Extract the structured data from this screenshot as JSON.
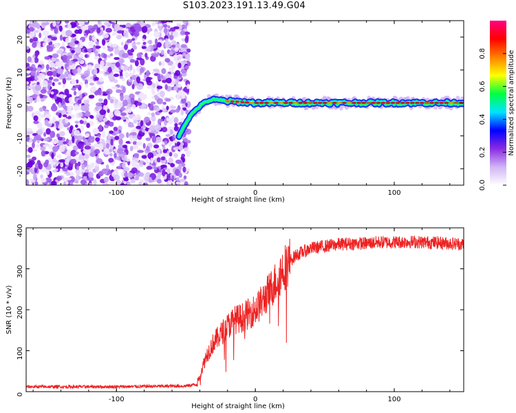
{
  "title": "S103.2023.191.13.49.G04",
  "chart_data": [
    {
      "type": "heatmap",
      "xlabel": "Height of straight line (km)",
      "ylabel": "Frequency (Hz)",
      "xlim": [
        -165,
        150
      ],
      "ylim": [
        -25,
        25
      ],
      "xticks": [
        -100,
        0,
        100
      ],
      "yticks": [
        -20,
        -10,
        0,
        10,
        20
      ],
      "colorbar": {
        "label": "Normalized spectral amplitude",
        "range": [
          0,
          1
        ],
        "ticks": [
          "0.0",
          "0.2",
          "0.4",
          "0.6",
          "0.8"
        ],
        "colormap": [
          "#ffffff",
          "#d0b4f5",
          "#8a2be2",
          "#0000ff",
          "#00e5ff",
          "#00ff40",
          "#ffff00",
          "#ff8000",
          "#ff0000",
          "#ff0080"
        ]
      },
      "signal_track": [
        {
          "x": -55,
          "y": -10
        },
        {
          "x": -50,
          "y": -6
        },
        {
          "x": -45,
          "y": -3
        },
        {
          "x": -40,
          "y": -1
        },
        {
          "x": -35,
          "y": 0.5
        },
        {
          "x": -30,
          "y": 1
        },
        {
          "x": -20,
          "y": 0.5
        },
        {
          "x": -10,
          "y": 0.3
        },
        {
          "x": 0,
          "y": 0
        },
        {
          "x": 50,
          "y": 0
        },
        {
          "x": 100,
          "y": 0
        },
        {
          "x": 150,
          "y": 0
        }
      ],
      "noise_region_xmax": -48,
      "grid": false
    },
    {
      "type": "line",
      "xlabel": "Height of straight line (km)",
      "ylabel": "SNR (10 * v/v)",
      "xlim": [
        -165,
        150
      ],
      "ylim": [
        0,
        400
      ],
      "xticks": [
        -100,
        0,
        100
      ],
      "yticks": [
        0,
        100,
        200,
        300,
        400
      ],
      "color": "#ee2222",
      "series": [
        {
          "x": [
            -165,
            -100,
            -50,
            -42,
            -40,
            -35,
            -30,
            -25,
            -20,
            -15,
            -10,
            -5,
            0,
            5,
            10,
            15,
            20,
            25,
            30,
            40,
            50,
            60,
            70,
            80,
            90,
            100,
            110,
            120,
            130,
            140,
            150
          ],
          "values": [
            12,
            12,
            14,
            18,
            40,
            90,
            120,
            140,
            160,
            175,
            180,
            190,
            200,
            220,
            245,
            270,
            300,
            320,
            335,
            350,
            355,
            360,
            362,
            362,
            365,
            365,
            366,
            365,
            364,
            362,
            360
          ]
        }
      ],
      "grid": false
    }
  ]
}
